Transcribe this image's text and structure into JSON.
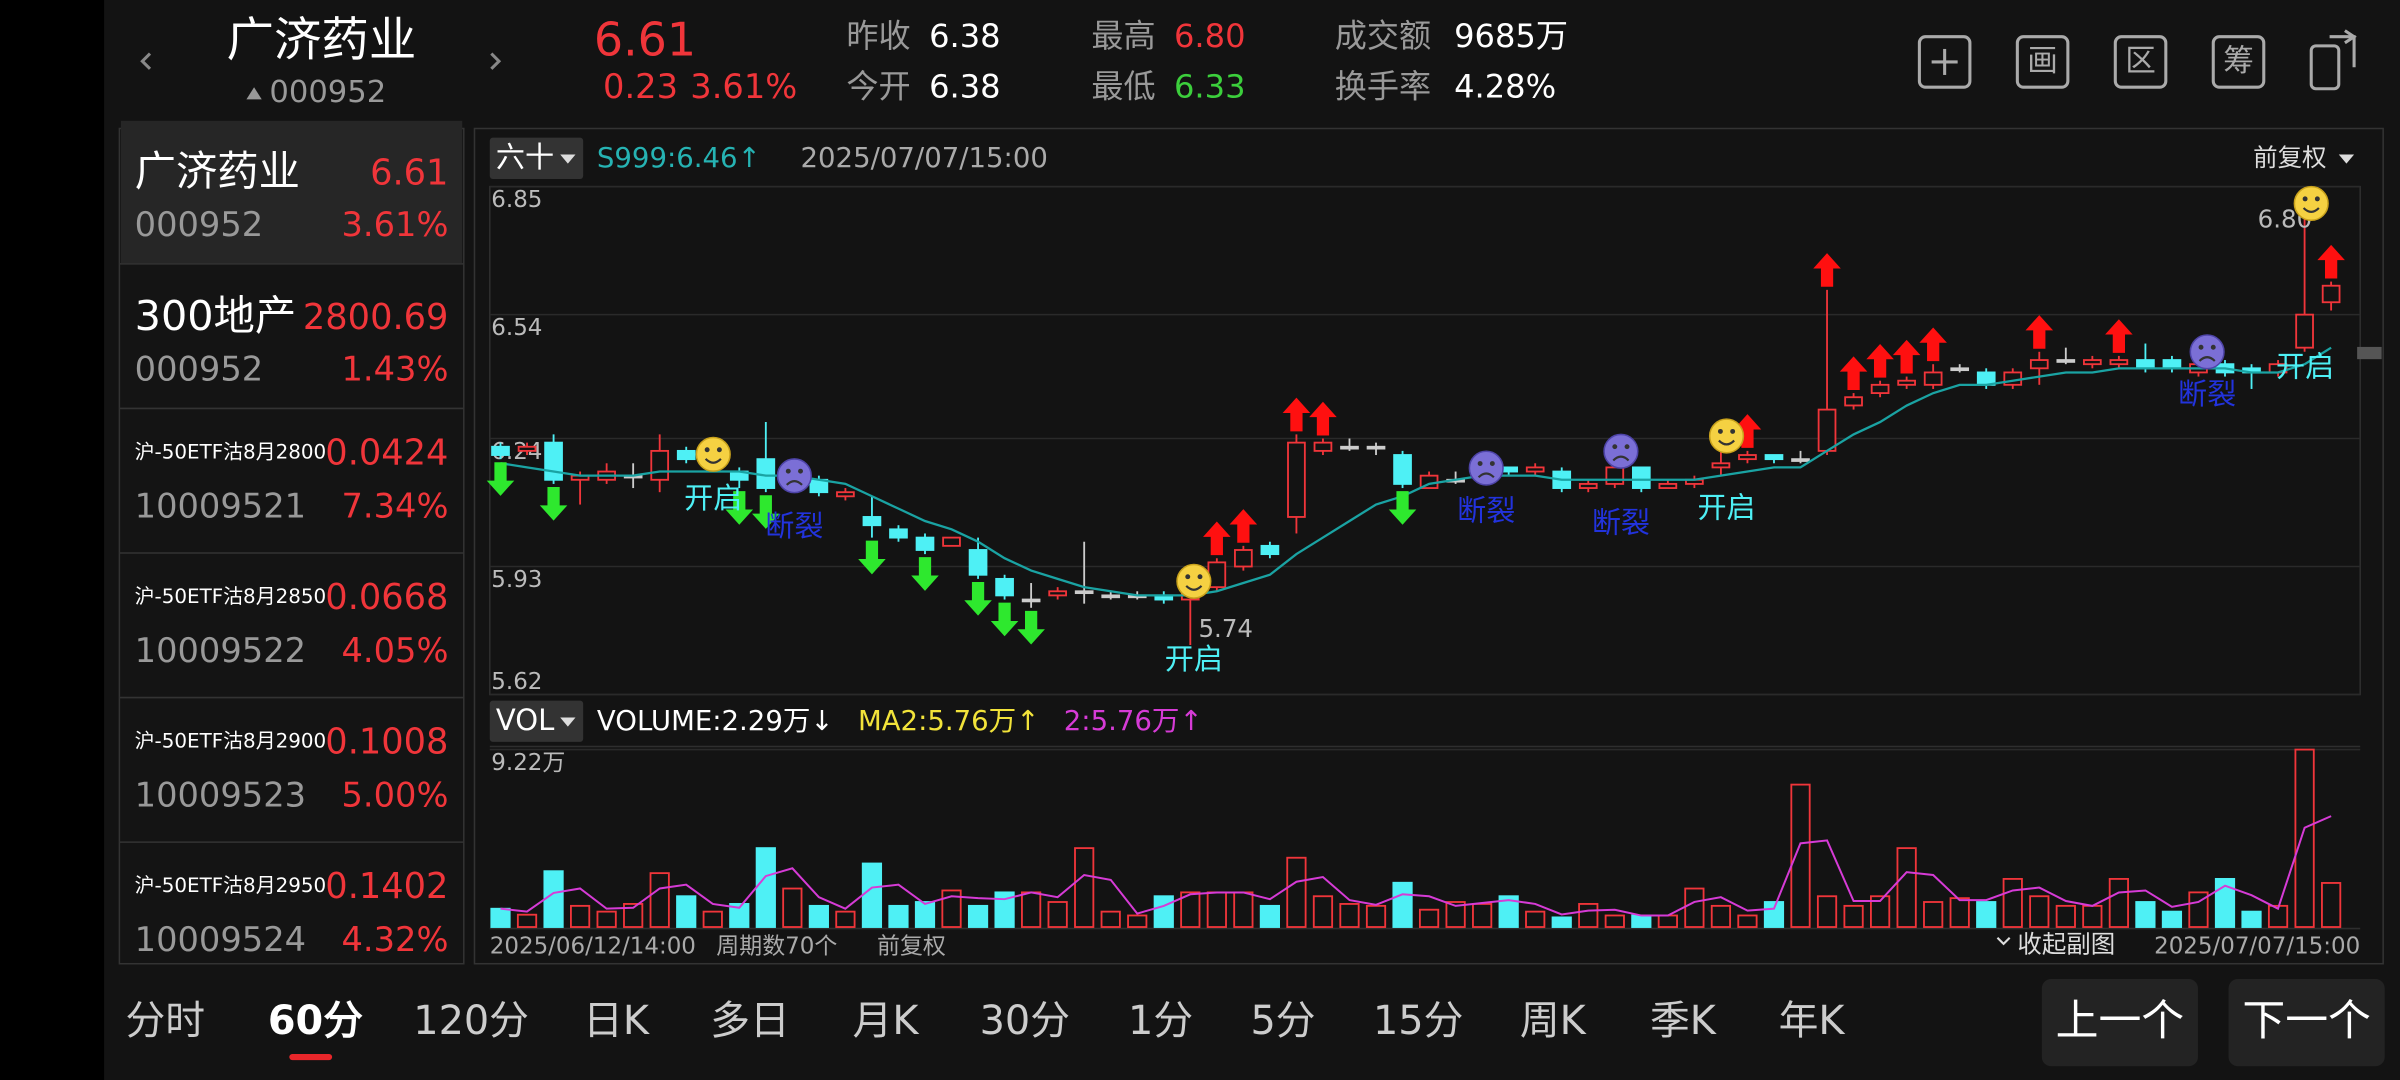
{
  "header": {
    "name": "广济药业",
    "code": "000952",
    "price": "6.61",
    "change": "0.23",
    "change_pct": "3.61%",
    "stats": [
      {
        "label": "昨收",
        "value": "6.38"
      },
      {
        "label": "今开",
        "value": "6.38"
      },
      {
        "label": "最高",
        "value": "6.80"
      },
      {
        "label": "最低",
        "value": "6.33"
      },
      {
        "label": "成交额",
        "value": "9685万"
      },
      {
        "label": "换手率",
        "value": "4.28%"
      }
    ],
    "tools": [
      "画",
      "区",
      "筹"
    ]
  },
  "watchlist": [
    {
      "name": "广济药业",
      "price": "6.61",
      "code": "000952",
      "pct": "3.61%"
    },
    {
      "name": "300地产",
      "price": "2800.69",
      "code": "000952",
      "pct": "1.43%"
    },
    {
      "name": "沪-50ETF沽8月2800",
      "price": "0.0424",
      "code": "10009521",
      "pct": "7.34%"
    },
    {
      "name": "沪-50ETF沽8月2850",
      "price": "0.0668",
      "code": "10009522",
      "pct": "4.05%"
    },
    {
      "name": "沪-50ETF沽8月2900",
      "price": "0.1008",
      "code": "10009523",
      "pct": "5.00%"
    },
    {
      "name": "沪-50ETF沽8月2950",
      "price": "0.1402",
      "code": "10009524",
      "pct": "4.32%"
    }
  ],
  "chart_header": {
    "period": "六十",
    "indicator": "S999:6.46↑",
    "time": "2025/07/07/15:00",
    "adjust": "前复权"
  },
  "chart_data": [
    {
      "type": "candlestick",
      "up_color": "#f0353a",
      "down_color": "#4ef0f5",
      "ma_color": "#1aa3a3",
      "grid": true,
      "open": [
        6.22,
        6.21,
        6.23,
        6.14,
        6.14,
        6.15,
        6.14,
        6.21,
        6.18,
        6.16,
        6.19,
        6.15,
        6.14,
        6.1,
        6.05,
        6.02,
        6.0,
        5.98,
        5.97,
        5.9,
        5.85,
        5.86,
        5.87,
        5.86,
        5.86,
        5.86,
        5.85,
        5.88,
        5.93,
        5.98,
        6.05,
        6.21,
        6.22,
        6.22,
        6.2,
        6.12,
        6.14,
        6.15,
        6.17,
        6.16,
        6.16,
        6.12,
        6.13,
        6.17,
        6.12,
        6.13,
        6.17,
        6.19,
        6.2,
        6.19,
        6.21,
        6.32,
        6.35,
        6.37,
        6.37,
        6.41,
        6.4,
        6.37,
        6.41,
        6.43,
        6.42,
        6.42,
        6.43,
        6.43,
        6.4,
        6.42,
        6.41,
        6.4,
        6.46,
        6.57
      ],
      "high": [
        6.23,
        6.23,
        6.25,
        6.16,
        6.18,
        6.18,
        6.25,
        6.22,
        6.2,
        6.17,
        6.28,
        6.17,
        6.15,
        6.12,
        6.1,
        6.03,
        6.01,
        6.0,
        6.0,
        5.91,
        5.89,
        5.88,
        5.99,
        5.87,
        5.87,
        5.87,
        5.9,
        5.95,
        5.98,
        5.99,
        6.25,
        6.24,
        6.24,
        6.23,
        6.21,
        6.16,
        6.16,
        6.17,
        6.17,
        6.18,
        6.17,
        6.14,
        6.18,
        6.17,
        6.14,
        6.15,
        6.22,
        6.21,
        6.2,
        6.21,
        6.6,
        6.35,
        6.38,
        6.39,
        6.42,
        6.42,
        6.41,
        6.41,
        6.45,
        6.46,
        6.44,
        6.44,
        6.47,
        6.44,
        6.43,
        6.43,
        6.42,
        6.43,
        6.8,
        6.62
      ],
      "low": [
        6.19,
        6.2,
        6.13,
        6.08,
        6.13,
        6.12,
        6.11,
        6.18,
        6.17,
        6.12,
        6.11,
        6.13,
        6.1,
        6.09,
        6.0,
        5.99,
        5.96,
        5.98,
        5.9,
        5.85,
        5.83,
        5.85,
        5.84,
        5.85,
        5.85,
        5.84,
        5.74,
        5.87,
        5.92,
        5.95,
        6.01,
        6.2,
        6.21,
        6.2,
        6.12,
        6.12,
        6.13,
        6.14,
        6.15,
        6.15,
        6.11,
        6.11,
        6.12,
        6.11,
        6.12,
        6.12,
        6.15,
        6.18,
        6.18,
        6.18,
        6.2,
        6.31,
        6.34,
        6.36,
        6.36,
        6.4,
        6.36,
        6.36,
        6.37,
        6.42,
        6.41,
        6.41,
        6.4,
        6.4,
        6.39,
        6.39,
        6.36,
        6.39,
        6.45,
        6.55
      ],
      "close": [
        6.2,
        6.22,
        6.14,
        6.15,
        6.16,
        6.15,
        6.21,
        6.19,
        6.19,
        6.14,
        6.12,
        6.16,
        6.11,
        6.11,
        6.03,
        6.0,
        5.97,
        6.0,
        5.91,
        5.86,
        5.85,
        5.87,
        5.87,
        5.86,
        5.86,
        5.85,
        5.89,
        5.94,
        5.97,
        5.96,
        6.23,
        6.23,
        6.22,
        6.22,
        6.13,
        6.15,
        6.14,
        6.16,
        6.16,
        6.17,
        6.12,
        6.13,
        6.17,
        6.12,
        6.13,
        6.14,
        6.18,
        6.2,
        6.19,
        6.19,
        6.31,
        6.34,
        6.37,
        6.38,
        6.4,
        6.41,
        6.37,
        6.4,
        6.43,
        6.43,
        6.43,
        6.43,
        6.41,
        6.41,
        6.42,
        6.4,
        6.4,
        6.42,
        6.54,
        6.61
      ],
      "ma": [
        6.18,
        6.17,
        6.16,
        6.15,
        6.15,
        6.15,
        6.16,
        6.16,
        6.16,
        6.16,
        6.15,
        6.15,
        6.14,
        6.13,
        6.1,
        6.07,
        6.04,
        6.02,
        5.99,
        5.95,
        5.92,
        5.9,
        5.88,
        5.87,
        5.86,
        5.86,
        5.86,
        5.87,
        5.89,
        5.91,
        5.96,
        6.0,
        6.04,
        6.08,
        6.1,
        6.13,
        6.14,
        6.15,
        6.15,
        6.15,
        6.14,
        6.14,
        6.14,
        6.14,
        6.14,
        6.14,
        6.15,
        6.16,
        6.17,
        6.17,
        6.21,
        6.25,
        6.28,
        6.32,
        6.35,
        6.37,
        6.37,
        6.38,
        6.39,
        6.4,
        6.4,
        6.41,
        6.41,
        6.41,
        6.41,
        6.41,
        6.4,
        6.4,
        6.42,
        6.46
      ],
      "ylim": [
        5.62,
        6.85
      ],
      "yticks": [
        6.85,
        6.54,
        6.24,
        5.93,
        5.62
      ],
      "high_label": "6.80",
      "annotations": [
        "开启",
        "断裂",
        "开启",
        "断裂",
        "断裂",
        "开启",
        "断裂",
        "开启"
      ]
    },
    {
      "type": "bar",
      "period": "VOL",
      "ma_color": "#d63bd6",
      "values": [
        0.95,
        0.64,
        2.9,
        1.1,
        0.8,
        1.2,
        2.8,
        1.6,
        0.8,
        1.2,
        4.1,
        2.0,
        1.1,
        0.8,
        3.3,
        1.1,
        1.3,
        1.9,
        1.1,
        1.8,
        1.8,
        1.3,
        4.1,
        0.8,
        0.6,
        1.6,
        1.8,
        1.8,
        1.8,
        1.1,
        3.6,
        1.6,
        1.2,
        1.1,
        2.3,
        0.9,
        1.3,
        1.2,
        1.6,
        0.8,
        0.5,
        1.2,
        0.6,
        0.6,
        0.6,
        2.0,
        1.1,
        0.6,
        1.3,
        7.4,
        1.6,
        1.1,
        1.6,
        4.1,
        1.3,
        1.5,
        1.3,
        2.5,
        1.6,
        1.1,
        1.1,
        2.5,
        1.3,
        0.8,
        1.8,
        2.5,
        0.8,
        1.1,
        9.22,
        2.29
      ],
      "ma2": [
        0.95,
        0.8,
        1.77,
        2.0,
        0.95,
        1.0,
        2.0,
        2.2,
        1.2,
        1.0,
        2.65,
        3.05,
        1.55,
        0.95,
        2.05,
        2.2,
        1.2,
        1.6,
        1.5,
        1.45,
        1.8,
        1.55,
        2.7,
        2.45,
        0.7,
        1.1,
        1.7,
        1.8,
        1.8,
        1.45,
        2.35,
        2.6,
        1.4,
        1.15,
        1.7,
        1.6,
        1.1,
        1.25,
        1.4,
        1.2,
        0.65,
        0.85,
        0.9,
        0.6,
        0.6,
        1.3,
        1.55,
        0.85,
        0.95,
        4.35,
        4.5,
        1.35,
        1.35,
        2.85,
        2.7,
        1.4,
        1.4,
        1.9,
        2.05,
        1.35,
        1.1,
        1.8,
        1.9,
        1.05,
        1.3,
        2.15,
        1.65,
        0.95,
        5.16,
        5.76
      ],
      "ylim": [
        0,
        9.22
      ],
      "yticks": [
        {
          "value": 9.22,
          "label": "9.22万"
        }
      ],
      "legend": [
        {
          "name": "VOLUME:2.29万↓",
          "color": "#ffffff"
        },
        {
          "name": "MA2:5.76万↑",
          "color": "#f2e33a"
        },
        {
          "name": "2:5.76万↑",
          "color": "#d63bd6"
        }
      ]
    }
  ],
  "footer": {
    "start": "2025/06/12/14:00",
    "count": "周期数70个",
    "adjust": "前复权",
    "collapse": "收起副图",
    "end": "2025/07/07/15:00"
  },
  "tabs": [
    "分时",
    "60分",
    "120分",
    "日K",
    "多日",
    "月K",
    "30分",
    "1分",
    "5分",
    "15分",
    "周K",
    "季K",
    "年K"
  ],
  "buttons": [
    "上一个",
    "下一个"
  ]
}
